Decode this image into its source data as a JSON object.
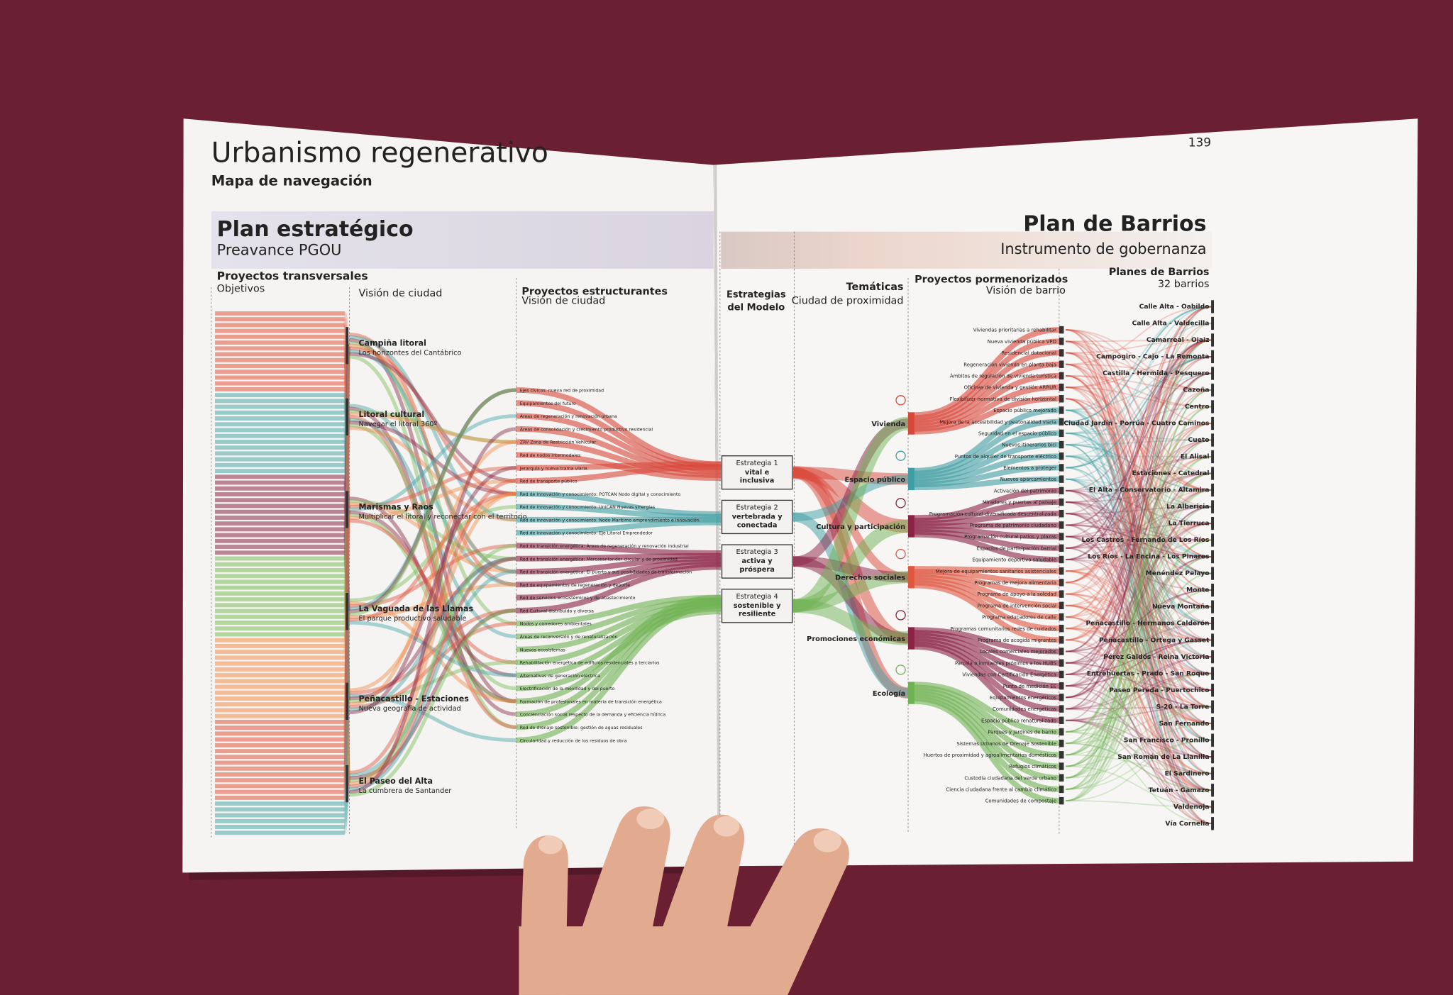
{
  "header": {
    "title": "Urbanismo regenerativo",
    "subtitle": "Mapa de navegación",
    "page_number": "139"
  },
  "plan_estrategico": {
    "title": "Plan estratégico",
    "subtitle": "Preavance PGOU",
    "transversales_heading": "Proyectos transversales",
    "objetivos": "Objetivos",
    "vision_heading": "Visión de ciudad",
    "vision_ciudad": [
      {
        "name": "Campiña litoral",
        "desc": "Los horizontes del Cantábrico"
      },
      {
        "name": "Litoral cultural",
        "desc": "Navegar el litoral 360º"
      },
      {
        "name": "Marismas y Raos",
        "desc": "Multiplicar el litoral y reconectar con el territorio"
      },
      {
        "name": "La Vaguada de las Llamas",
        "desc": "El parque productivo saludable"
      },
      {
        "name": "Peñacastillo - Estaciones",
        "desc": "Nueva geografía de actividad"
      },
      {
        "name": "El Paseo del Alta",
        "desc": "La cumbrera de Santander"
      }
    ],
    "estructurantes_heading": "Proyectos estructurantes",
    "estructurantes_sub": "Visión de ciudad",
    "estructurantes": [
      "Ejes cívicos: nueva red de proximidad",
      "Equipamientos del futuro",
      "Áreas de regeneración y renovación urbana",
      "Áreas de consolidación y crecimiento productivo residencial",
      "ZRV Zona de Restricción Vehicular",
      "Red de nodos intermodales",
      "Jerarquía y nueva trama viaria",
      "Red de transporte público",
      "Red de innovación y conocimiento: POTCAN Nodo digital y conocimiento",
      "Red de innovación y conocimiento: UniCAN Nuevas sinergias",
      "Red de innovación y conocimiento: Nodo Marítimo emprendimiento e innovación",
      "Red de innovación y conocimiento: Eje Litoral Emprendedor",
      "Red de transición energética: Áreas de regeneración y renovación industrial",
      "Red de transición energética: Mercasantander circular y de proximidad",
      "Red de transición energética: El puerto y sus posibilidades de transformación",
      "Red de equipamientos de regeneración y deporte",
      "Red de servicios ecosistémicos y de abastecimiento",
      "Red Cultural distribuida y diversa",
      "Nodos y corredores ambientales",
      "Áreas de reconversión y de renaturalización",
      "Nuevos ecosistemas",
      "Rehabilitación energética de edificios residenciales y terciarios",
      "Alternativas de generación eléctrica",
      "Electrificación de la movilidad y del puerto",
      "Formación de profesionales en materia de transición energética",
      "Concienciación social respecto de la demanda y eficiencia hídrica",
      "Red de drenaje sostenible: gestión de aguas residuales",
      "Circularidad y reducción de los residuos de obra"
    ]
  },
  "modelo": {
    "heading": [
      "Estrategias",
      "del Modelo"
    ],
    "strategies": [
      {
        "label": "Estrategia 1",
        "name": [
          "vital e",
          "inclusiva"
        ]
      },
      {
        "label": "Estrategia 2",
        "name": [
          "vertebrada y",
          "conectada"
        ]
      },
      {
        "label": "Estrategia 3",
        "name": [
          "activa y",
          "próspera"
        ]
      },
      {
        "label": "Estrategia 4",
        "name": [
          "sostenible y",
          "resiliente"
        ]
      }
    ]
  },
  "plan_barrios": {
    "title": "Plan de Barrios",
    "subtitle": "Instrumento de gobernanza",
    "tematicas_heading": "Temáticas",
    "tematicas_sub": "Ciudad de proximidad",
    "tematicas": [
      "Vivienda",
      "Espacio público",
      "Cultura y participación",
      "Derechos sociales",
      "Promociones económicas",
      "Ecología"
    ],
    "pormenorizados_heading": "Proyectos pormenorizados",
    "pormenorizados_sub": "Visión de barrio",
    "pormenorizados": [
      "Viviendas prioritarias a rehabilitar",
      "Nueva vivienda pública VPO",
      "Residencial dotacional",
      "Regeneración vivienda en planta baja",
      "Ámbitos de regulación de vivienda turística",
      "Oficinas de vivienda y gestión ARRUR",
      "Flexibilizar normativa de división horizontal",
      "Espacio público mejorado",
      "Mejora de la accesibilidad y peatonalidad viaria",
      "Seguridad en el espacio público",
      "Nuevos itinerarios bici",
      "Puntos de alquiler de transporte eléctrico",
      "Elementos a proteger",
      "Nuevos aparcamientos",
      "Activación del patrimonio",
      "Miradores y puertas al paisaje",
      "Programación cultural diversificada descentralizada",
      "Programa de patrimonio ciudadano",
      "Programación cultural patios y plazas",
      "Espacios de participación barrial",
      "Equipamiento deportivo saludable",
      "Mejora de equipamientos sanitarios asistenciales",
      "Programas de mejora alimentaria",
      "Programa de apoyo a la soledad",
      "Programa de intervención social",
      "Programa educadores de calle",
      "Programas comunitarios redes de cuidados",
      "Programa de acogida migrantes",
      "Locales comerciales mejorados",
      "Parcela o inmuebles próximos a los HUBS",
      "Viviendas con Certificación Energética",
      "Punto de medición EE",
      "Equipamientos energéticos",
      "Comunidades energéticas",
      "Espacio público renaturalizado",
      "Parques y jardines de barrio",
      "Sistemas Urbanos de Drenaje Sostenible",
      "Huertos de proximidad y agroalimentarios domésticos",
      "Refugios climáticos",
      "Custodia ciudadana del verde urbano",
      "Ciencia ciudadana frente al cambio climático",
      "Comunidades de compostaje"
    ],
    "barrios_heading": "Planes de Barrios",
    "barrios_sub": "32 barrios",
    "barrios": [
      "Calle Alta - Oabildo",
      "Calle Alta - Valdecilla",
      "Camarreal - Ojaiz",
      "Campogiro - Cajo - La Remonta",
      "Castilla - Hermida - Pesquero",
      "Cazoña",
      "Centro",
      "Ciudad Jardín - Porrúa - Cuatro Caminos",
      "Cueto",
      "El Alisal",
      "Estaciones - Catedral",
      "El Alta - Conservatorio - Altamira",
      "La Albericia",
      "La Tierruca",
      "Los Castros - Fernando de Los Ríos",
      "Los Ríos - La Encina - Los Pinares",
      "Menéndez Pelayo",
      "Monte",
      "Nueva Montaña",
      "Peñacastillo - Hermanos Calderón",
      "Peñacastillo - Ortega y Gasset",
      "Pérez Galdós - Reina Victoria",
      "Entrehuertas - Prado - San Roque",
      "Paseo Pereda - Puertochico",
      "S-20 - La Torre",
      "San Fernando",
      "San Francisco - Pronillo",
      "San Román de La Llanilla",
      "El Sardinero",
      "Tetuán - Gamazo",
      "Valdenoja",
      "Vía Cornelia"
    ]
  }
}
